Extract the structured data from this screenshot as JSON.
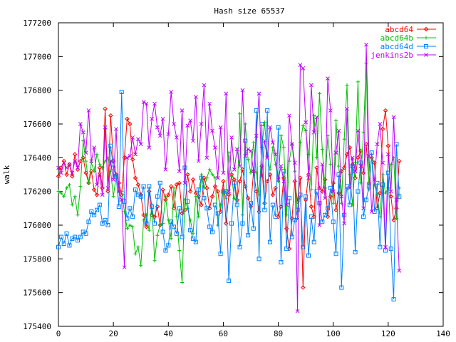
{
  "chart_data": {
    "type": "line",
    "title": "Hash size 65537",
    "xlabel": "",
    "ylabel": "walk",
    "xlim": [
      0,
      140
    ],
    "ylim": [
      175400,
      177200
    ],
    "xticks": [
      0,
      20,
      40,
      60,
      80,
      100,
      120,
      140
    ],
    "yticks": [
      175400,
      175600,
      175800,
      176000,
      176200,
      176400,
      176600,
      176800,
      177000,
      177200
    ],
    "legend_position": "top-right",
    "grid": false,
    "series": [
      {
        "name": "abcd64",
        "color": "#ff0000",
        "marker": "diamond",
        "values": [
          176290,
          176340,
          176380,
          176300,
          176360,
          176290,
          176420,
          176330,
          176380,
          176400,
          176310,
          176250,
          176320,
          176210,
          176180,
          176340,
          176220,
          176690,
          176200,
          176650,
          176380,
          176300,
          176250,
          176180,
          176400,
          176630,
          176600,
          176390,
          176280,
          176240,
          176180,
          176060,
          175990,
          176200,
          176060,
          176050,
          176110,
          176000,
          176210,
          176150,
          176180,
          176230,
          176100,
          176240,
          176250,
          176070,
          176090,
          176300,
          176200,
          176270,
          176190,
          176170,
          176120,
          176280,
          176220,
          176100,
          176170,
          176230,
          176200,
          176080,
          176260,
          176010,
          176180,
          176300,
          176270,
          176150,
          176260,
          176330,
          176230,
          176160,
          176110,
          176320,
          176200,
          176080,
          176350,
          176130,
          176260,
          176300,
          176180,
          176220,
          176050,
          176110,
          176280,
          175980,
          175860,
          176040,
          176260,
          176140,
          176280,
          175630,
          176150,
          176300,
          176110,
          176050,
          176340,
          176220,
          176200,
          176270,
          176050,
          176170,
          176250,
          176090,
          176190,
          176320,
          176340,
          176420,
          176460,
          176360,
          176280,
          176400,
          176440,
          176310,
          176480,
          176250,
          176400,
          176370,
          176100,
          176190,
          176570,
          176680,
          176470,
          176170,
          176030,
          176100,
          176380
        ]
      },
      {
        "name": "abcd64b",
        "color": "#00c000",
        "marker": "plus",
        "values": [
          176200,
          176190,
          176170,
          176220,
          176240,
          176120,
          176170,
          176060,
          176230,
          176500,
          176380,
          176250,
          176370,
          176320,
          176420,
          176360,
          176340,
          176380,
          176400,
          176320,
          176170,
          176290,
          176200,
          176200,
          176080,
          175980,
          176000,
          175990,
          175830,
          175870,
          175760,
          176030,
          176060,
          175970,
          176120,
          175790,
          175940,
          176000,
          176010,
          176170,
          176030,
          175920,
          176220,
          176050,
          175850,
          175660,
          176150,
          176100,
          176030,
          175950,
          176170,
          176050,
          176300,
          176220,
          176280,
          176330,
          176300,
          176280,
          176000,
          176120,
          176210,
          176160,
          176430,
          176290,
          176160,
          176140,
          176660,
          176060,
          176600,
          176390,
          176310,
          176490,
          176310,
          176180,
          176460,
          176610,
          176410,
          176330,
          176460,
          176360,
          176260,
          176530,
          176460,
          176060,
          176380,
          176480,
          176320,
          176040,
          176490,
          176590,
          176560,
          176420,
          176210,
          176650,
          176400,
          176780,
          176450,
          176220,
          176530,
          176360,
          176130,
          176620,
          176350,
          176130,
          176510,
          176830,
          176300,
          176120,
          176370,
          176850,
          176250,
          176550,
          176960,
          176210,
          176420,
          176240,
          176180,
          176050,
          176300,
          176190,
          176220,
          176360,
          176400,
          176040,
          176220
        ]
      },
      {
        "name": "abcd64d",
        "color": "#0080ff",
        "marker": "square",
        "values": [
          175870,
          175930,
          175890,
          175950,
          175880,
          175920,
          175930,
          175910,
          175930,
          175960,
          175950,
          176020,
          176080,
          176060,
          176090,
          176120,
          176010,
          176030,
          176000,
          176470,
          176340,
          176290,
          176110,
          176790,
          176140,
          176040,
          176100,
          176050,
          176210,
          176180,
          176170,
          176230,
          176010,
          176230,
          176110,
          176010,
          176170,
          176250,
          175960,
          175850,
          175880,
          176020,
          175990,
          175950,
          176100,
          175930,
          176340,
          176140,
          175970,
          175920,
          175900,
          176210,
          176280,
          176160,
          176100,
          175990,
          175960,
          176120,
          176070,
          175830,
          176200,
          176200,
          175670,
          176010,
          176250,
          176120,
          175870,
          176010,
          176500,
          175940,
          176130,
          175980,
          176680,
          175800,
          176600,
          176090,
          176680,
          175900,
          176120,
          176050,
          176580,
          175780,
          176320,
          175860,
          176160,
          175930,
          176030,
          176090,
          176180,
          175870,
          176170,
          175820,
          176050,
          175900,
          176200,
          176130,
          176020,
          176060,
          176100,
          176220,
          176020,
          175830,
          176300,
          175630,
          176060,
          176230,
          176120,
          176350,
          175840,
          176200,
          176370,
          176050,
          176150,
          176230,
          176430,
          176080,
          176250,
          175870,
          176240,
          175850,
          176310,
          175860,
          175560,
          176480,
          176170
        ]
      },
      {
        "name": "jenkins2b",
        "color": "#c000ff",
        "marker": "cross",
        "values": [
          176340,
          176310,
          176370,
          176340,
          176360,
          176310,
          176380,
          176340,
          176600,
          176550,
          176430,
          176680,
          176380,
          176460,
          176240,
          176300,
          176180,
          176580,
          176220,
          176380,
          176270,
          176570,
          176200,
          176150,
          175750,
          176400,
          176410,
          176520,
          176420,
          176510,
          176480,
          176730,
          176720,
          176460,
          176630,
          176720,
          176580,
          176530,
          176630,
          176330,
          176540,
          176790,
          176600,
          176520,
          176320,
          176680,
          176250,
          176590,
          176620,
          176500,
          176760,
          176380,
          176600,
          176830,
          176400,
          176720,
          176560,
          176460,
          176280,
          176580,
          176310,
          176780,
          176200,
          176520,
          176330,
          176450,
          176350,
          176800,
          176410,
          176450,
          176440,
          176320,
          176530,
          176780,
          176290,
          176500,
          176400,
          176580,
          176490,
          176420,
          176270,
          176350,
          176260,
          176120,
          176650,
          176480,
          176370,
          175490,
          176950,
          176930,
          176610,
          176280,
          176830,
          176550,
          176640,
          176000,
          176360,
          176160,
          176870,
          176680,
          176200,
          176430,
          176560,
          176170,
          176010,
          176690,
          176220,
          176400,
          176320,
          176560,
          176350,
          176100,
          177070,
          176410,
          176080,
          176270,
          176480,
          176600,
          176370,
          175870,
          176420,
          176200,
          176640,
          176150,
          175730
        ]
      }
    ]
  }
}
